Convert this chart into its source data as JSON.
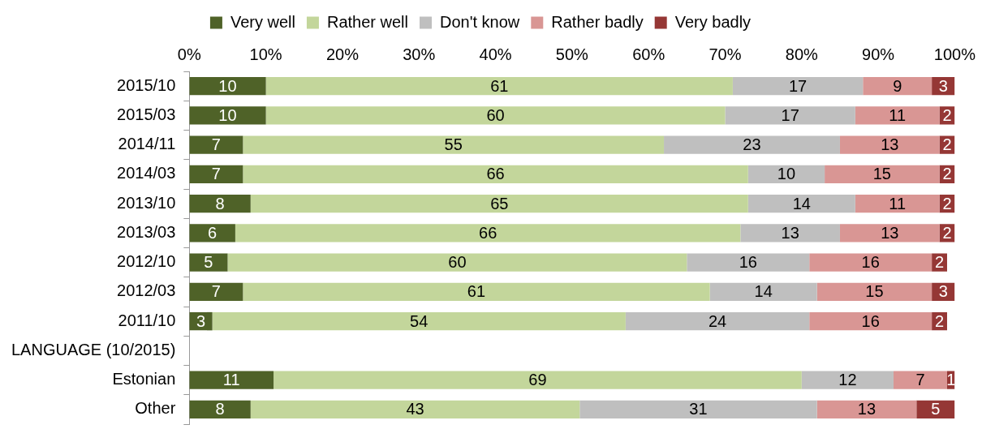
{
  "chart_data": {
    "type": "bar",
    "orientation": "horizontal",
    "stacked": true,
    "data_labels": true,
    "grid": false,
    "legend": "top",
    "categories": [
      "2015/10",
      "2015/03",
      "2014/11",
      "2014/03",
      "2013/10",
      "2013/03",
      "2012/10",
      "2012/03",
      "2011/10",
      "LANGUAGE (10/2015)",
      "Estonian",
      "Other"
    ],
    "xlim": [
      0,
      100
    ],
    "xticks": [
      {
        "value": 0,
        "label": "0%"
      },
      {
        "value": 10,
        "label": "10%"
      },
      {
        "value": 20,
        "label": "20%"
      },
      {
        "value": 30,
        "label": "30%"
      },
      {
        "value": 40,
        "label": "40%"
      },
      {
        "value": 50,
        "label": "50%"
      },
      {
        "value": 60,
        "label": "60%"
      },
      {
        "value": 70,
        "label": "70%"
      },
      {
        "value": 80,
        "label": "80%"
      },
      {
        "value": 90,
        "label": "90%"
      },
      {
        "value": 100,
        "label": "100%"
      }
    ],
    "series": [
      {
        "name": "Very well",
        "color": "#4f6228",
        "values": [
          10,
          10,
          7,
          7,
          8,
          6,
          5,
          7,
          3,
          null,
          11,
          8
        ]
      },
      {
        "name": "Rather well",
        "color": "#c3d69b",
        "values": [
          61,
          60,
          55,
          66,
          65,
          66,
          60,
          61,
          54,
          null,
          69,
          43
        ]
      },
      {
        "name": "Don't know",
        "color": "#bfbfbf",
        "values": [
          17,
          17,
          23,
          10,
          14,
          13,
          16,
          14,
          24,
          null,
          12,
          31
        ]
      },
      {
        "name": "Rather badly",
        "color": "#d99694",
        "values": [
          9,
          11,
          13,
          15,
          11,
          13,
          16,
          15,
          16,
          null,
          7,
          13
        ]
      },
      {
        "name": "Very badly",
        "color": "#953735",
        "values": [
          3,
          2,
          2,
          2,
          2,
          2,
          2,
          3,
          2,
          null,
          1,
          5
        ]
      }
    ]
  }
}
